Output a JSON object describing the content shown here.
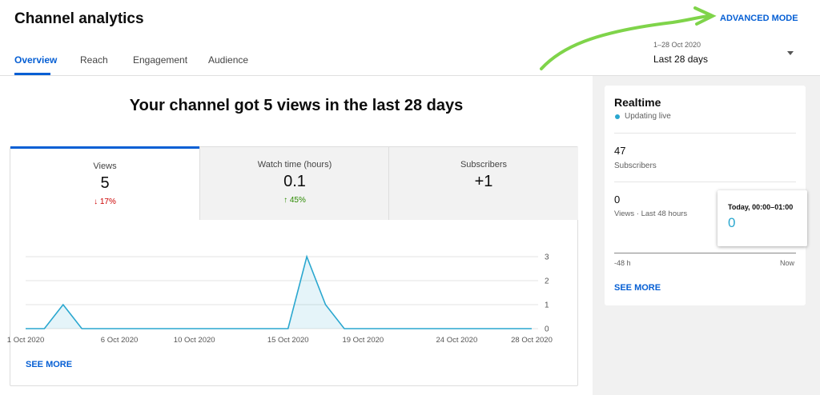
{
  "header": {
    "title": "Channel analytics",
    "tabs": [
      "Overview",
      "Reach",
      "Engagement",
      "Audience"
    ],
    "advanced_mode": "ADVANCED MODE",
    "date_range": "1–28 Oct 2020",
    "period": "Last 28 days"
  },
  "summary": {
    "headline": "Your channel got 5 views in the last 28 days",
    "cards": [
      {
        "label": "Views",
        "value": "5",
        "change": "17%"
      },
      {
        "label": "Watch time (hours)",
        "value": "0.1",
        "change": "45%"
      },
      {
        "label": "Subscribers",
        "value": "+1"
      }
    ],
    "see_more": "SEE MORE"
  },
  "chart_data": {
    "type": "line",
    "color": "#2aa7cf",
    "categories": [
      "1 Oct 2020",
      null,
      null,
      null,
      null,
      "6 Oct 2020",
      null,
      null,
      null,
      "10 Oct 2020",
      null,
      null,
      null,
      null,
      "15 Oct 2020",
      null,
      null,
      null,
      "19 Oct 2020",
      null,
      null,
      null,
      null,
      "24 Oct 2020",
      null,
      null,
      null,
      "28 Oct 2020"
    ],
    "values": [
      0,
      0,
      1,
      0,
      0,
      0,
      0,
      0,
      0,
      0,
      0,
      0,
      0,
      0,
      0,
      3,
      1,
      0,
      0,
      0,
      0,
      0,
      0,
      0,
      0,
      0,
      0,
      0
    ],
    "ylim": [
      0,
      3
    ],
    "yticks": [
      0,
      1,
      2,
      3
    ],
    "grid": true
  },
  "realtime": {
    "title": "Realtime",
    "status": "Updating live",
    "subscribers": "47",
    "subscribers_label": "Subscribers",
    "views": "0",
    "views_label": "Views · Last 48 hours",
    "tooltip_title": "Today, 00:00–01:00",
    "tooltip_value": "0",
    "axis_start": "-48 h",
    "axis_end": "Now",
    "see_more": "SEE MORE"
  }
}
